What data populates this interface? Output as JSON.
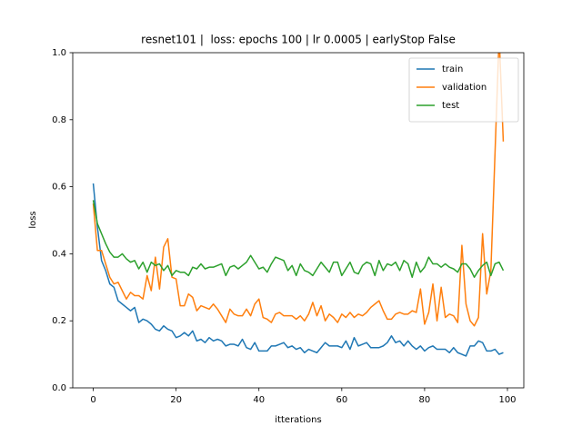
{
  "chart_data": {
    "type": "line",
    "title": "resnet101 |  loss: epochs 100 | lr 0.0005 | earlyStop False",
    "x_label": "itterations",
    "y_label": "loss",
    "x": [
      0,
      1,
      2,
      3,
      4,
      5,
      6,
      7,
      8,
      9,
      10,
      11,
      12,
      13,
      14,
      15,
      16,
      17,
      18,
      19,
      20,
      21,
      22,
      23,
      24,
      25,
      26,
      27,
      28,
      29,
      30,
      31,
      32,
      33,
      34,
      35,
      36,
      37,
      38,
      39,
      40,
      41,
      42,
      43,
      44,
      45,
      46,
      47,
      48,
      49,
      50,
      51,
      52,
      53,
      54,
      55,
      56,
      57,
      58,
      59,
      60,
      61,
      62,
      63,
      64,
      65,
      66,
      67,
      68,
      69,
      70,
      71,
      72,
      73,
      74,
      75,
      76,
      77,
      78,
      79,
      80,
      81,
      82,
      83,
      84,
      85,
      86,
      87,
      88,
      89,
      90,
      91,
      92,
      93,
      94,
      95,
      96,
      97,
      98,
      99
    ],
    "series": [
      {
        "name": "train",
        "color": "#1f77b4",
        "values": [
          0.61,
          0.48,
          0.38,
          0.35,
          0.31,
          0.3,
          0.26,
          0.25,
          0.24,
          0.23,
          0.24,
          0.195,
          0.205,
          0.2,
          0.19,
          0.175,
          0.17,
          0.185,
          0.175,
          0.17,
          0.15,
          0.155,
          0.165,
          0.155,
          0.17,
          0.14,
          0.145,
          0.135,
          0.15,
          0.14,
          0.145,
          0.14,
          0.125,
          0.13,
          0.13,
          0.125,
          0.145,
          0.12,
          0.115,
          0.135,
          0.11,
          0.11,
          0.11,
          0.125,
          0.125,
          0.13,
          0.135,
          0.12,
          0.125,
          0.115,
          0.12,
          0.105,
          0.115,
          0.11,
          0.105,
          0.12,
          0.135,
          0.125,
          0.125,
          0.125,
          0.12,
          0.14,
          0.115,
          0.15,
          0.125,
          0.13,
          0.135,
          0.12,
          0.12,
          0.12,
          0.125,
          0.135,
          0.155,
          0.135,
          0.14,
          0.125,
          0.14,
          0.125,
          0.115,
          0.125,
          0.11,
          0.12,
          0.125,
          0.115,
          0.115,
          0.115,
          0.105,
          0.12,
          0.105,
          0.1,
          0.095,
          0.125,
          0.125,
          0.14,
          0.135,
          0.11,
          0.11,
          0.115,
          0.1,
          0.105
        ]
      },
      {
        "name": "validation",
        "color": "#ff7f0e",
        "values": [
          0.55,
          0.41,
          0.41,
          0.37,
          0.33,
          0.31,
          0.315,
          0.29,
          0.265,
          0.285,
          0.275,
          0.275,
          0.265,
          0.335,
          0.29,
          0.39,
          0.295,
          0.42,
          0.445,
          0.33,
          0.325,
          0.245,
          0.245,
          0.28,
          0.27,
          0.23,
          0.245,
          0.24,
          0.235,
          0.25,
          0.235,
          0.215,
          0.195,
          0.235,
          0.22,
          0.215,
          0.215,
          0.235,
          0.215,
          0.25,
          0.265,
          0.21,
          0.205,
          0.195,
          0.22,
          0.225,
          0.215,
          0.215,
          0.215,
          0.205,
          0.215,
          0.2,
          0.22,
          0.255,
          0.215,
          0.245,
          0.2,
          0.22,
          0.21,
          0.195,
          0.22,
          0.21,
          0.225,
          0.21,
          0.22,
          0.215,
          0.225,
          0.24,
          0.25,
          0.26,
          0.23,
          0.205,
          0.205,
          0.22,
          0.225,
          0.22,
          0.22,
          0.23,
          0.225,
          0.295,
          0.19,
          0.225,
          0.31,
          0.2,
          0.3,
          0.21,
          0.22,
          0.215,
          0.195,
          0.425,
          0.25,
          0.2,
          0.185,
          0.21,
          0.46,
          0.28,
          0.35,
          0.7,
          1.05,
          0.735
        ]
      },
      {
        "name": "test",
        "color": "#2ca02c",
        "values": [
          0.56,
          0.49,
          0.46,
          0.43,
          0.405,
          0.39,
          0.39,
          0.4,
          0.385,
          0.375,
          0.38,
          0.355,
          0.375,
          0.345,
          0.375,
          0.365,
          0.37,
          0.35,
          0.365,
          0.335,
          0.35,
          0.345,
          0.345,
          0.335,
          0.36,
          0.355,
          0.37,
          0.355,
          0.36,
          0.36,
          0.365,
          0.37,
          0.335,
          0.36,
          0.365,
          0.355,
          0.365,
          0.375,
          0.395,
          0.375,
          0.355,
          0.36,
          0.345,
          0.37,
          0.39,
          0.385,
          0.38,
          0.35,
          0.365,
          0.335,
          0.37,
          0.35,
          0.345,
          0.335,
          0.355,
          0.375,
          0.36,
          0.345,
          0.375,
          0.375,
          0.335,
          0.355,
          0.375,
          0.345,
          0.34,
          0.365,
          0.375,
          0.37,
          0.335,
          0.38,
          0.35,
          0.37,
          0.365,
          0.375,
          0.35,
          0.38,
          0.37,
          0.33,
          0.375,
          0.345,
          0.36,
          0.39,
          0.37,
          0.37,
          0.36,
          0.37,
          0.36,
          0.355,
          0.345,
          0.37,
          0.37,
          0.355,
          0.33,
          0.35,
          0.365,
          0.375,
          0.335,
          0.37,
          0.375,
          0.35
        ]
      }
    ],
    "xlim": [
      -4.95,
      103.95
    ],
    "ylim": [
      0,
      1
    ],
    "xticks": [
      0,
      20,
      40,
      60,
      80,
      100
    ],
    "yticks": [
      {
        "value": 0,
        "label": "0.0"
      },
      0.2,
      0.4,
      0.6,
      0.8,
      {
        "value": 1,
        "label": "1.0"
      }
    ],
    "legend": "upper right"
  }
}
